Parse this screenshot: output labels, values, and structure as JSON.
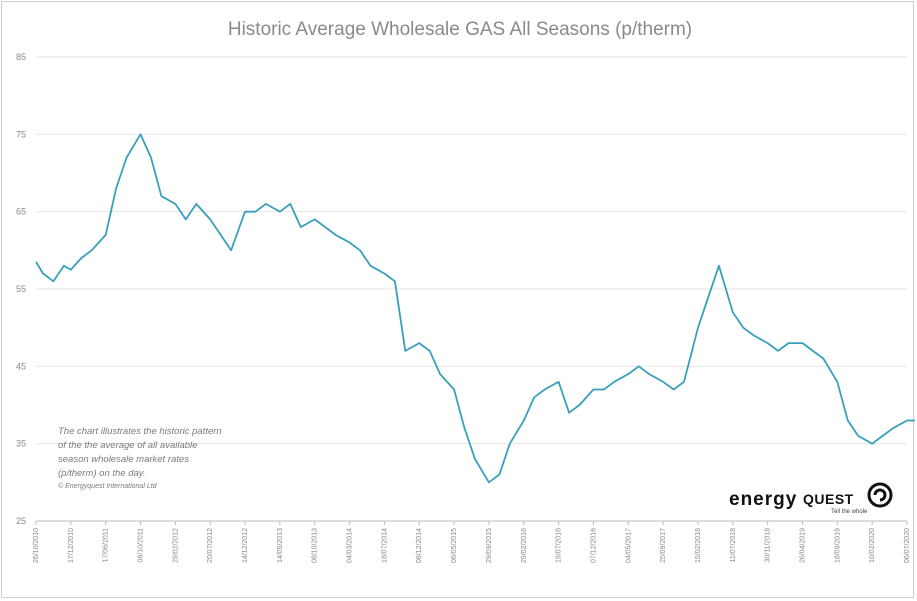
{
  "chart_data": {
    "type": "line",
    "title": "Historic Average Wholesale GAS All Seasons (p/therm)",
    "xlabel": "",
    "ylabel": "",
    "ylim": [
      25,
      85
    ],
    "yticks": [
      25,
      35,
      45,
      55,
      65,
      75,
      85
    ],
    "grid": "horizontal",
    "legend": "none",
    "x_tick_labels": [
      "26/10/2010",
      "17/12/2010",
      "17/06/2011",
      "08/10/2011",
      "29/02/2012",
      "20/07/2012",
      "14/12/2012",
      "14/05/2013",
      "08/10/2013",
      "04/03/2014",
      "18/07/2014",
      "08/12/2014",
      "06/05/2015",
      "29/09/2015",
      "29/02/2016",
      "19/07/2016",
      "07/12/2016",
      "04/05/2017",
      "25/09/2017",
      "15/02/2018",
      "11/07/2018",
      "30/11/2018",
      "26/04/2019",
      "18/09/2019",
      "10/02/2020",
      "06/07/2020"
    ],
    "series": [
      {
        "name": "",
        "color": "#3a9fbd",
        "x_index": [
          0,
          0.2,
          0.5,
          0.8,
          1,
          1.3,
          1.6,
          2,
          2.3,
          2.6,
          3,
          3.3,
          3.6,
          4,
          4.3,
          4.6,
          5,
          5.3,
          5.6,
          6,
          6.3,
          6.6,
          7,
          7.3,
          7.6,
          8,
          8.3,
          8.6,
          9,
          9.3,
          9.6,
          10,
          10.3,
          10.6,
          11,
          11.3,
          11.6,
          12,
          12.3,
          12.6,
          13,
          13.3,
          13.6,
          14,
          14.3,
          14.6,
          15,
          15.3,
          15.6,
          16,
          16.3,
          16.6,
          17,
          17.3,
          17.6,
          18,
          18.3,
          18.6,
          19,
          19.3,
          19.6,
          20,
          20.3,
          20.6,
          21,
          21.3,
          21.6,
          22,
          22.3,
          22.6,
          23,
          23.3,
          23.6,
          24,
          24.3,
          24.6,
          25,
          25.3,
          25.6,
          26
        ],
        "values": [
          58.5,
          57,
          56,
          58,
          57.5,
          59,
          60,
          62,
          68,
          72,
          75,
          72,
          67,
          66,
          64,
          66,
          64,
          62,
          60,
          65,
          65,
          66,
          65,
          66,
          63,
          64,
          63,
          62,
          61,
          60,
          58,
          57,
          56,
          47,
          48,
          47,
          44,
          42,
          37,
          33,
          30,
          31,
          35,
          38,
          41,
          42,
          43,
          39,
          40,
          42,
          42,
          43,
          44,
          45,
          44,
          43,
          42,
          43,
          50,
          54,
          58,
          52,
          50,
          49,
          48,
          47,
          48,
          48,
          47,
          46,
          43,
          38,
          36,
          35,
          36,
          37,
          38,
          38,
          37,
          37
        ]
      }
    ],
    "annotation": {
      "lines": [
        "The chart illustrates the historic pattern",
        "of the the average of all available",
        "season wholesale market rates",
        "(p/therm) on the day."
      ],
      "copyright": "© Energyquest International Ltd"
    },
    "logo": {
      "text_1": "energy",
      "text_2": "QUEST",
      "sub": "Tell the whole"
    }
  }
}
